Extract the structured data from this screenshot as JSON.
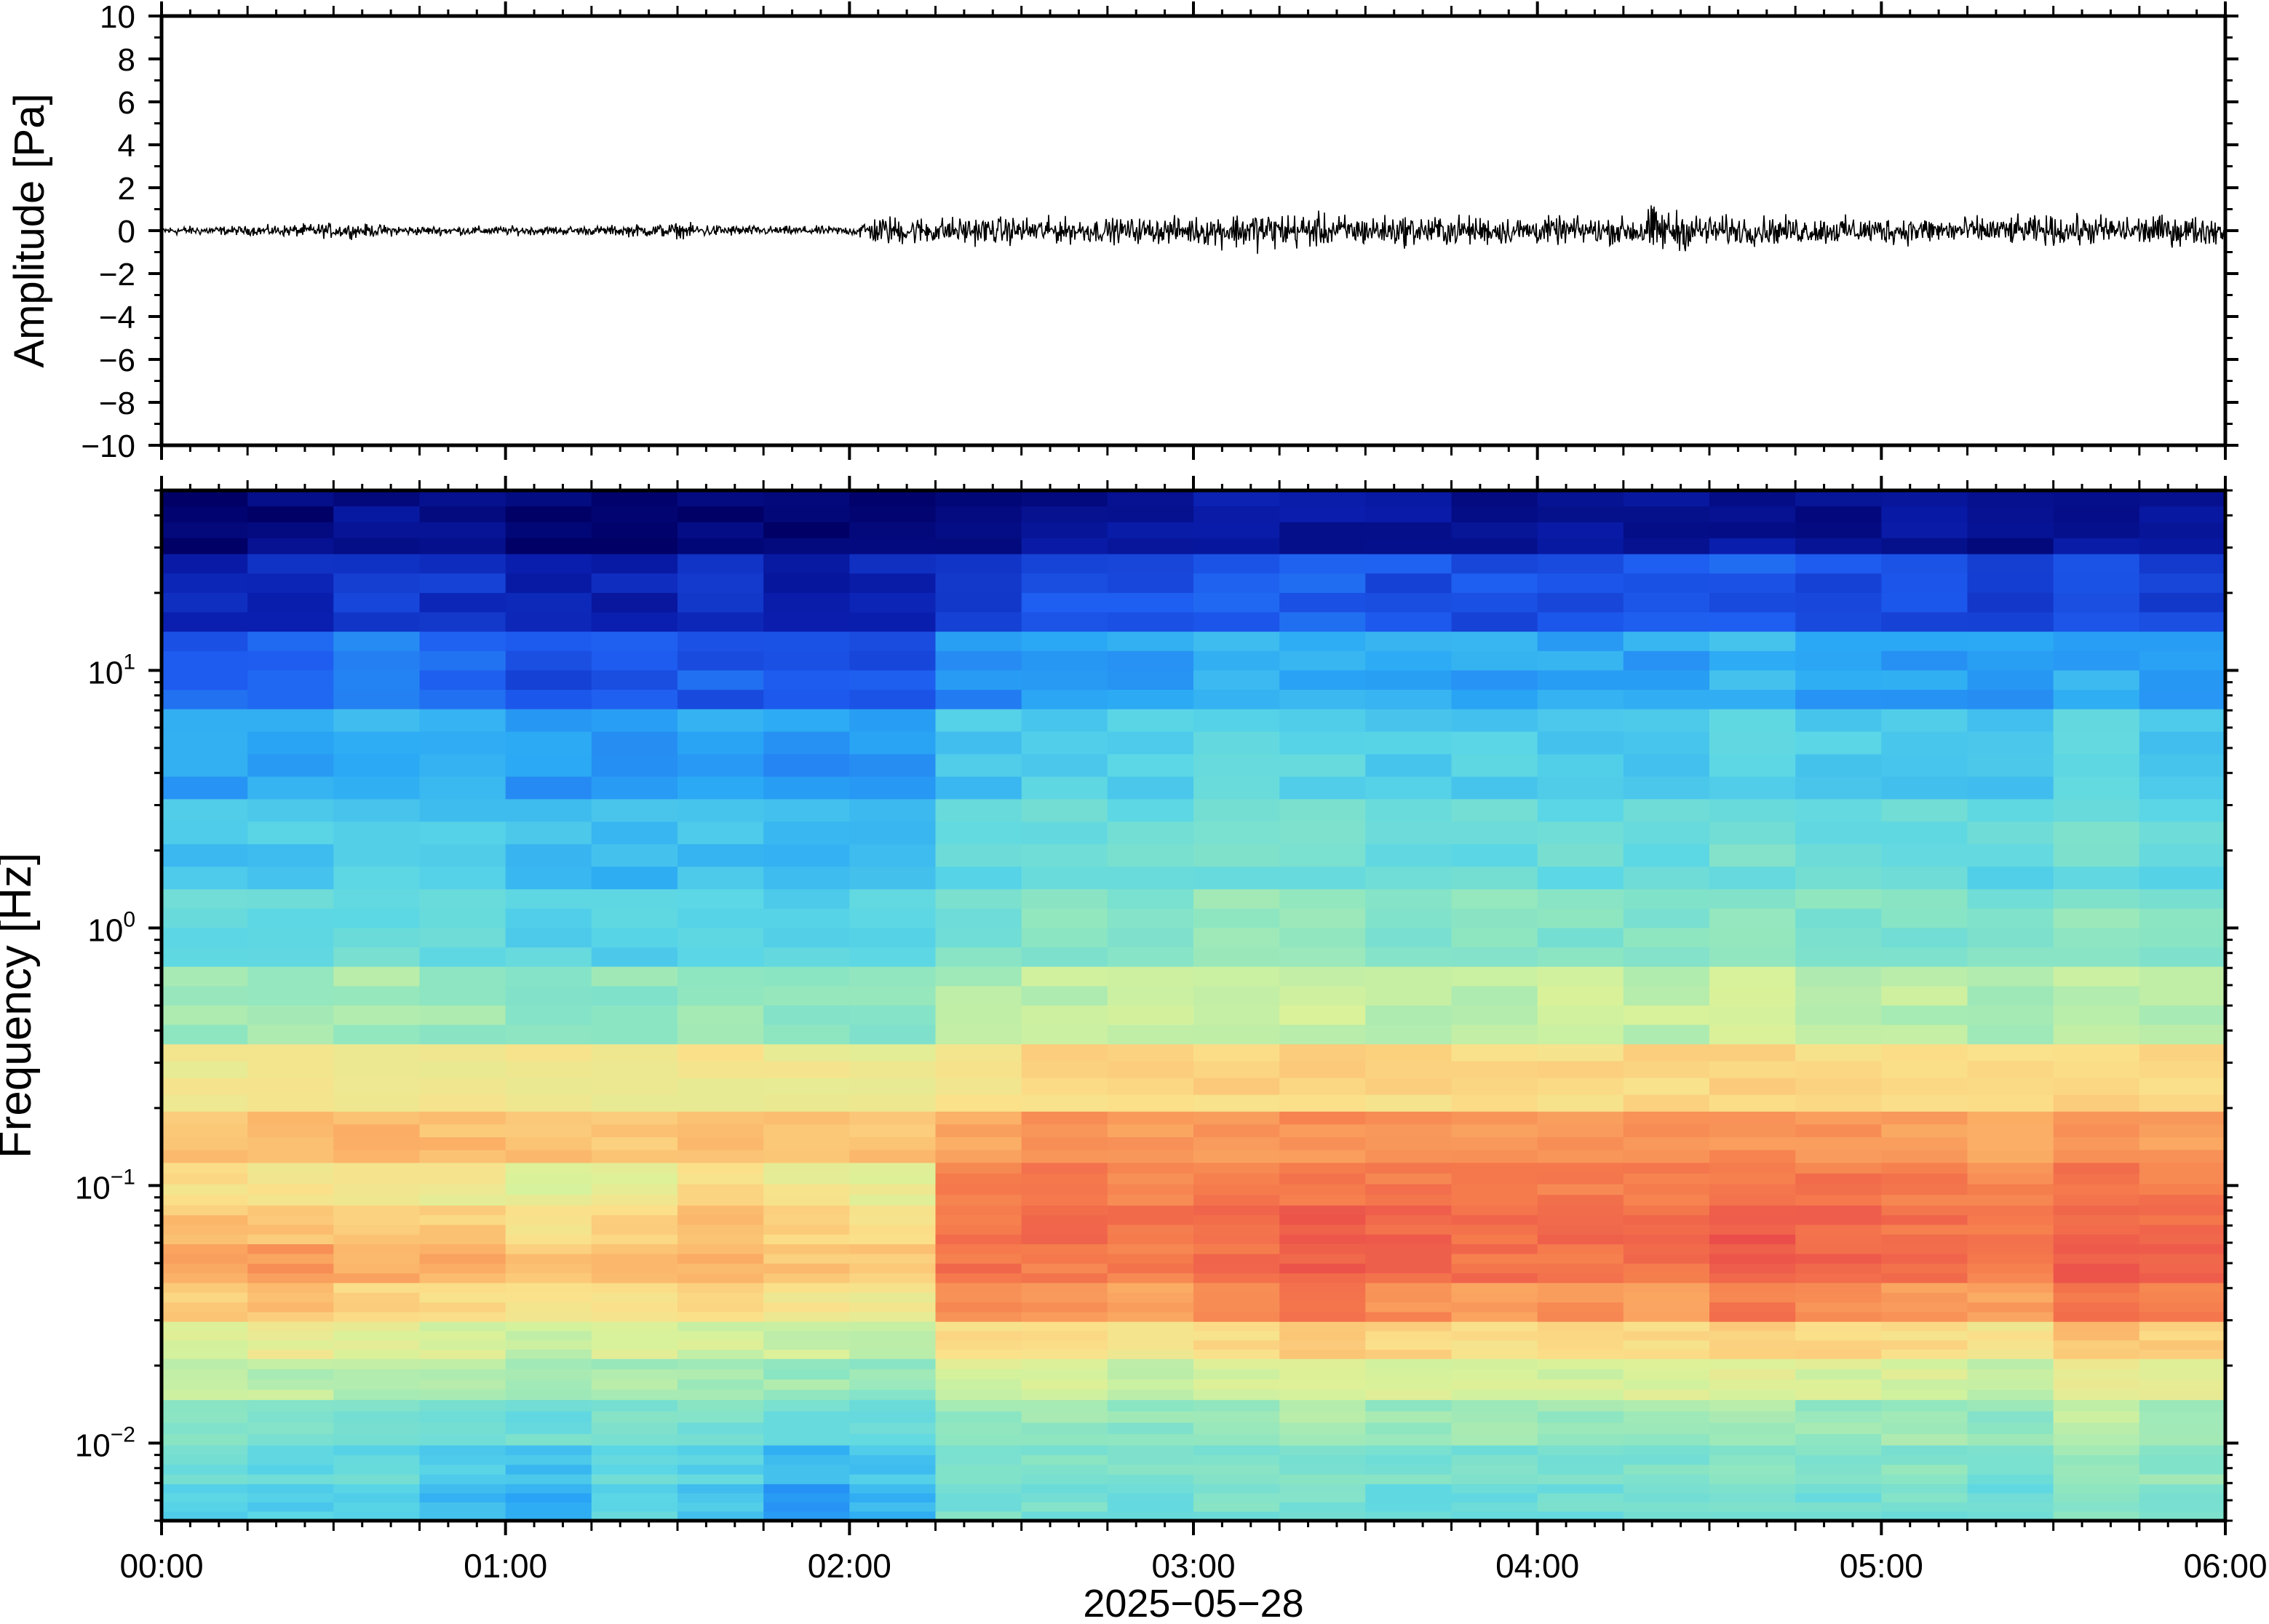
{
  "chart_data": [
    {
      "type": "line",
      "title": "",
      "xlabel": "",
      "ylabel": "Amplitude [Pa]",
      "ylim": [
        -10,
        10
      ],
      "yticks": [
        "10",
        "8",
        "6",
        "4",
        "2",
        "0",
        "−2",
        "−4",
        "−6",
        "−8",
        "−10"
      ],
      "ytick_values": [
        10,
        8,
        6,
        4,
        2,
        0,
        -2,
        -4,
        -6,
        -8,
        -10
      ],
      "xlim": [
        "00:00",
        "06:00"
      ],
      "series": [
        {
          "color": "#000000",
          "x": [
            "00:00",
            "00:15",
            "00:30",
            "00:45",
            "01:00",
            "01:15",
            "01:30",
            "01:45",
            "02:00",
            "02:05",
            "02:15",
            "02:30",
            "02:45",
            "03:00",
            "03:10",
            "03:30",
            "03:45",
            "04:00",
            "04:15",
            "04:20",
            "04:30",
            "04:45",
            "05:00",
            "05:15",
            "05:20",
            "05:35",
            "05:50",
            "06:00"
          ],
          "envelope_pa": [
            0.3,
            0.3,
            0.5,
            0.3,
            0.3,
            0.3,
            0.5,
            0.3,
            0.3,
            1.0,
            0.9,
            0.9,
            0.8,
            0.9,
            1.3,
            1.0,
            1.0,
            0.9,
            0.9,
            1.6,
            1.0,
            0.9,
            0.9,
            0.9,
            0.9,
            1.0,
            1.0,
            0.9
          ]
        }
      ]
    },
    {
      "type": "heatmap",
      "title": "",
      "xlabel": "2025−05−28",
      "ylabel": "Frequency [Hz]",
      "yscale": "log",
      "ylim": [
        0.005,
        50
      ],
      "xlim": [
        "00:00",
        "06:00"
      ],
      "x_tick_labels": [
        "00:00",
        "01:00",
        "02:00",
        "03:00",
        "04:00",
        "05:00",
        "06:00"
      ],
      "y_tick_labels": [
        {
          "value": 10,
          "base": "10",
          "exp": "1"
        },
        {
          "value": 1,
          "base": "10",
          "exp": "0"
        },
        {
          "value": 0.1,
          "base": "10",
          "exp": "−1"
        },
        {
          "value": 0.01,
          "base": "10",
          "exp": "−2"
        }
      ],
      "colormap": [
        "#000066",
        "#0a1fb0",
        "#1e5cf0",
        "#2aa8f5",
        "#5ad6e6",
        "#8fe6c0",
        "#d9f29a",
        "#fbe08a",
        "#fbb066",
        "#f57b4c",
        "#e9484a"
      ],
      "time_columns": [
        "00:00",
        "00:15",
        "00:30",
        "00:45",
        "01:00",
        "01:15",
        "01:30",
        "01:45",
        "02:00",
        "02:15",
        "02:30",
        "02:45",
        "03:00",
        "03:15",
        "03:30",
        "03:45",
        "04:00",
        "04:15",
        "04:30",
        "04:45",
        "05:00",
        "05:15",
        "05:30",
        "05:45"
      ],
      "frequency_rows_hz": [
        40,
        20,
        10,
        5,
        2,
        1,
        0.5,
        0.25,
        0.15,
        0.1,
        0.07,
        0.05,
        0.035,
        0.025,
        0.018,
        0.012,
        0.008,
        0.006
      ],
      "relative_power": [
        [
          0.02,
          0.03,
          0.05,
          0.04,
          0.02,
          0.02,
          0.03,
          0.02,
          0.03,
          0.05,
          0.06,
          0.06,
          0.08,
          0.07,
          0.06,
          0.06,
          0.06,
          0.06,
          0.07,
          0.06,
          0.06,
          0.05,
          0.06,
          0.05
        ],
        [
          0.1,
          0.12,
          0.15,
          0.13,
          0.1,
          0.1,
          0.12,
          0.1,
          0.1,
          0.16,
          0.18,
          0.18,
          0.2,
          0.2,
          0.18,
          0.18,
          0.18,
          0.18,
          0.2,
          0.18,
          0.17,
          0.16,
          0.19,
          0.17
        ],
        [
          0.2,
          0.22,
          0.25,
          0.22,
          0.18,
          0.18,
          0.2,
          0.18,
          0.18,
          0.27,
          0.3,
          0.3,
          0.32,
          0.32,
          0.3,
          0.3,
          0.3,
          0.3,
          0.33,
          0.3,
          0.29,
          0.28,
          0.31,
          0.29
        ],
        [
          0.3,
          0.31,
          0.33,
          0.31,
          0.28,
          0.28,
          0.3,
          0.28,
          0.28,
          0.36,
          0.38,
          0.38,
          0.4,
          0.4,
          0.38,
          0.38,
          0.38,
          0.38,
          0.4,
          0.38,
          0.37,
          0.36,
          0.39,
          0.37
        ],
        [
          0.36,
          0.37,
          0.38,
          0.37,
          0.34,
          0.34,
          0.35,
          0.34,
          0.34,
          0.41,
          0.43,
          0.43,
          0.45,
          0.45,
          0.43,
          0.43,
          0.43,
          0.43,
          0.45,
          0.43,
          0.42,
          0.41,
          0.44,
          0.42
        ],
        [
          0.42,
          0.42,
          0.43,
          0.42,
          0.4,
          0.4,
          0.41,
          0.4,
          0.4,
          0.46,
          0.48,
          0.48,
          0.5,
          0.5,
          0.48,
          0.48,
          0.48,
          0.48,
          0.5,
          0.48,
          0.47,
          0.46,
          0.49,
          0.47
        ],
        [
          0.52,
          0.52,
          0.53,
          0.52,
          0.5,
          0.5,
          0.51,
          0.5,
          0.5,
          0.55,
          0.57,
          0.57,
          0.58,
          0.58,
          0.57,
          0.57,
          0.57,
          0.57,
          0.58,
          0.57,
          0.56,
          0.55,
          0.57,
          0.56
        ],
        [
          0.66,
          0.67,
          0.68,
          0.67,
          0.66,
          0.66,
          0.67,
          0.66,
          0.66,
          0.7,
          0.71,
          0.71,
          0.72,
          0.72,
          0.71,
          0.71,
          0.71,
          0.71,
          0.72,
          0.71,
          0.7,
          0.7,
          0.72,
          0.71
        ],
        [
          0.76,
          0.77,
          0.78,
          0.77,
          0.76,
          0.76,
          0.77,
          0.76,
          0.76,
          0.82,
          0.84,
          0.84,
          0.86,
          0.86,
          0.84,
          0.84,
          0.84,
          0.84,
          0.86,
          0.84,
          0.83,
          0.82,
          0.86,
          0.84
        ],
        [
          0.7,
          0.68,
          0.66,
          0.66,
          0.62,
          0.64,
          0.7,
          0.66,
          0.64,
          0.88,
          0.9,
          0.89,
          0.9,
          0.92,
          0.9,
          0.9,
          0.9,
          0.9,
          0.92,
          0.9,
          0.89,
          0.88,
          0.92,
          0.9
        ],
        [
          0.76,
          0.76,
          0.74,
          0.74,
          0.7,
          0.72,
          0.76,
          0.72,
          0.7,
          0.9,
          0.92,
          0.91,
          0.94,
          0.96,
          0.94,
          0.92,
          0.94,
          0.92,
          0.96,
          0.94,
          0.92,
          0.9,
          0.95,
          0.93
        ],
        [
          0.82,
          0.84,
          0.8,
          0.8,
          0.76,
          0.78,
          0.8,
          0.76,
          0.74,
          0.92,
          0.9,
          0.9,
          0.92,
          0.96,
          0.94,
          0.92,
          0.92,
          0.92,
          0.96,
          0.94,
          0.92,
          0.9,
          0.96,
          0.94
        ],
        [
          0.74,
          0.76,
          0.72,
          0.72,
          0.68,
          0.7,
          0.72,
          0.68,
          0.66,
          0.86,
          0.84,
          0.82,
          0.86,
          0.9,
          0.86,
          0.84,
          0.86,
          0.84,
          0.9,
          0.86,
          0.84,
          0.82,
          0.9,
          0.88
        ],
        [
          0.62,
          0.64,
          0.62,
          0.6,
          0.58,
          0.6,
          0.6,
          0.58,
          0.56,
          0.7,
          0.7,
          0.68,
          0.7,
          0.74,
          0.72,
          0.7,
          0.7,
          0.7,
          0.74,
          0.72,
          0.7,
          0.68,
          0.76,
          0.74
        ],
        [
          0.56,
          0.56,
          0.55,
          0.54,
          0.52,
          0.54,
          0.54,
          0.52,
          0.5,
          0.6,
          0.6,
          0.58,
          0.6,
          0.62,
          0.6,
          0.6,
          0.6,
          0.6,
          0.62,
          0.6,
          0.6,
          0.58,
          0.64,
          0.62
        ],
        [
          0.48,
          0.48,
          0.47,
          0.46,
          0.44,
          0.46,
          0.46,
          0.44,
          0.42,
          0.52,
          0.52,
          0.5,
          0.52,
          0.54,
          0.52,
          0.52,
          0.52,
          0.52,
          0.54,
          0.52,
          0.52,
          0.5,
          0.56,
          0.54
        ],
        [
          0.44,
          0.42,
          0.42,
          0.38,
          0.36,
          0.42,
          0.4,
          0.34,
          0.36,
          0.48,
          0.48,
          0.46,
          0.48,
          0.48,
          0.46,
          0.46,
          0.46,
          0.46,
          0.48,
          0.46,
          0.48,
          0.46,
          0.52,
          0.5
        ],
        [
          0.4,
          0.38,
          0.38,
          0.34,
          0.3,
          0.4,
          0.36,
          0.3,
          0.32,
          0.46,
          0.46,
          0.44,
          0.46,
          0.46,
          0.44,
          0.44,
          0.44,
          0.44,
          0.46,
          0.44,
          0.46,
          0.44,
          0.5,
          0.48
        ]
      ]
    }
  ]
}
